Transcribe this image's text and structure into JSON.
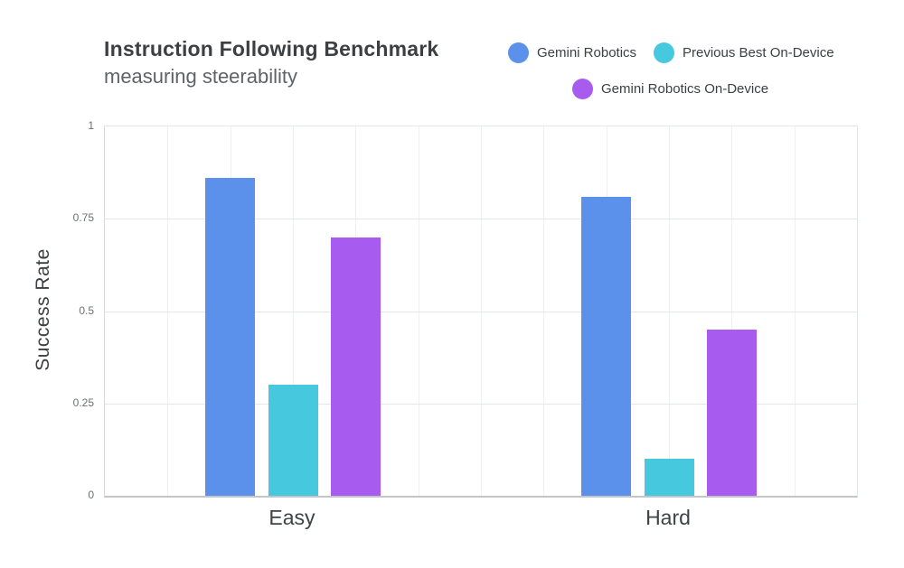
{
  "chart_data": {
    "type": "bar",
    "title": "Instruction Following Benchmark",
    "subtitle": "measuring steerability",
    "ylabel": "Success Rate",
    "xlabel": "",
    "categories": [
      "Easy",
      "Hard"
    ],
    "series": [
      {
        "name": "Gemini Robotics",
        "color": "#5B90EB",
        "values": [
          0.86,
          0.81
        ]
      },
      {
        "name": "Previous Best On-Device",
        "color": "#46C8DE",
        "values": [
          0.3,
          0.1
        ]
      },
      {
        "name": "Gemini Robotics On-Device",
        "color": "#A75CEF",
        "values": [
          0.7,
          0.45
        ]
      }
    ],
    "ylim": [
      0,
      1
    ],
    "ytick_labels": [
      "0",
      "0.25",
      "0.5",
      "0.75",
      "1"
    ],
    "ytick_values": [
      0,
      0.25,
      0.5,
      0.75,
      1
    ],
    "grid": {
      "horizontal": true,
      "vertical_divisions": 12
    },
    "legend_position": "top-right"
  }
}
